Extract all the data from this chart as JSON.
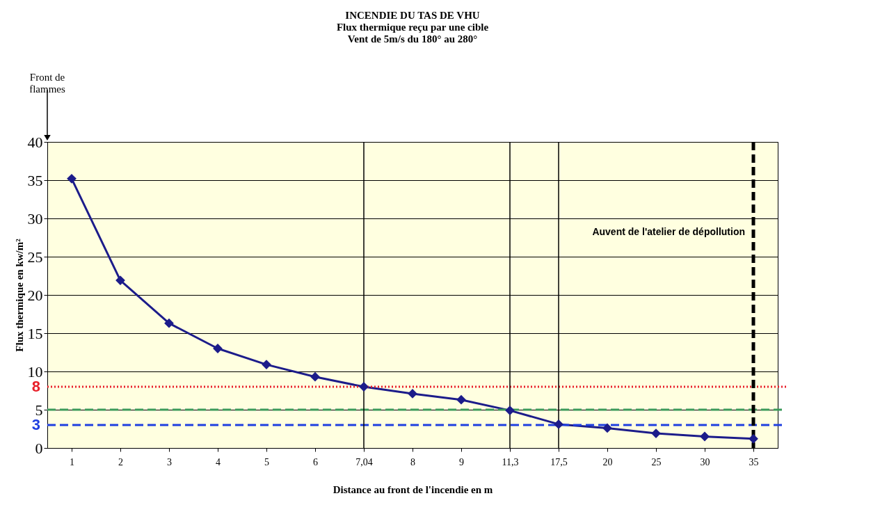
{
  "chart_data": {
    "type": "line",
    "title": [
      "INCENDIE  DU TAS  DE VHU",
      "Flux thermique reçu par une cible",
      "Vent de 5m/s du 180° au 280°"
    ],
    "xlabel": "Distance au front de l'incendie en m",
    "ylabel": "Flux thermique en kw/m²",
    "categories": [
      "1",
      "2",
      "3",
      "4",
      "5",
      "6",
      "7,04",
      "8",
      "9",
      "11,3",
      "17,5",
      "20",
      "25",
      "30",
      "35"
    ],
    "series": [
      {
        "color": "#1c1c8a",
        "values": [
          35.2,
          21.9,
          16.3,
          13.0,
          10.9,
          9.3,
          8.0,
          7.1,
          6.3,
          4.9,
          3.1,
          2.6,
          1.9,
          1.5,
          1.2
        ]
      }
    ],
    "ylim": [
      0,
      40
    ],
    "yticks": [
      0,
      5,
      10,
      15,
      20,
      25,
      30,
      35,
      40
    ],
    "grid": "y",
    "marker": "diamond",
    "line_style": "solid",
    "ref_lines": [
      {
        "axis": "y",
        "value": 8,
        "label": "8",
        "color": "#e8202a",
        "line_style": "dotted"
      },
      {
        "axis": "y",
        "value": 5,
        "label": null,
        "color": "#3a9a5a",
        "line_style": "dashed"
      },
      {
        "axis": "y",
        "value": 3,
        "label": "3",
        "color": "#1f3fe0",
        "line_style": "dashed"
      },
      {
        "axis": "x",
        "value": "7,04",
        "label": null,
        "color": "#000000",
        "line_style": "solid"
      },
      {
        "axis": "x",
        "value": "11,3",
        "label": null,
        "color": "#000000",
        "line_style": "solid"
      },
      {
        "axis": "x",
        "value": "17,5",
        "label": null,
        "color": "#000000",
        "line_style": "solid"
      },
      {
        "axis": "x",
        "value": "35",
        "label": "Auvent  de l'atelier de dépollution",
        "color": "#000000",
        "line_style": "dashed"
      }
    ],
    "annotations": [
      "Front de flammes"
    ]
  }
}
